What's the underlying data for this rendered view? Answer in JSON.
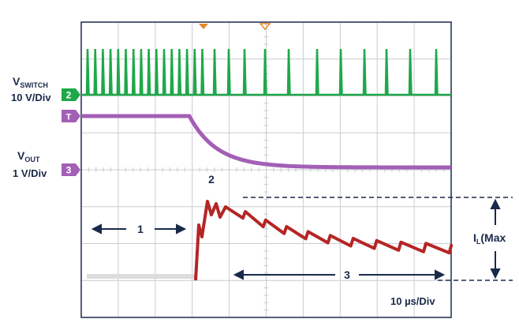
{
  "channels": {
    "switch": {
      "label": "V",
      "label_sub": "SWITCH",
      "scale": "10 V/Div",
      "marker": "2"
    },
    "trigger": {
      "marker": "T"
    },
    "out": {
      "label": "V",
      "label_sub": "OUT",
      "scale": "1 V/Div",
      "marker": "3"
    }
  },
  "annotations": {
    "peak": "2",
    "phase1": "1",
    "phase3": "3",
    "current_label": "I",
    "current_sub": "L",
    "current_suffix": "(Max"
  },
  "timebase": "10 µs/Div"
}
